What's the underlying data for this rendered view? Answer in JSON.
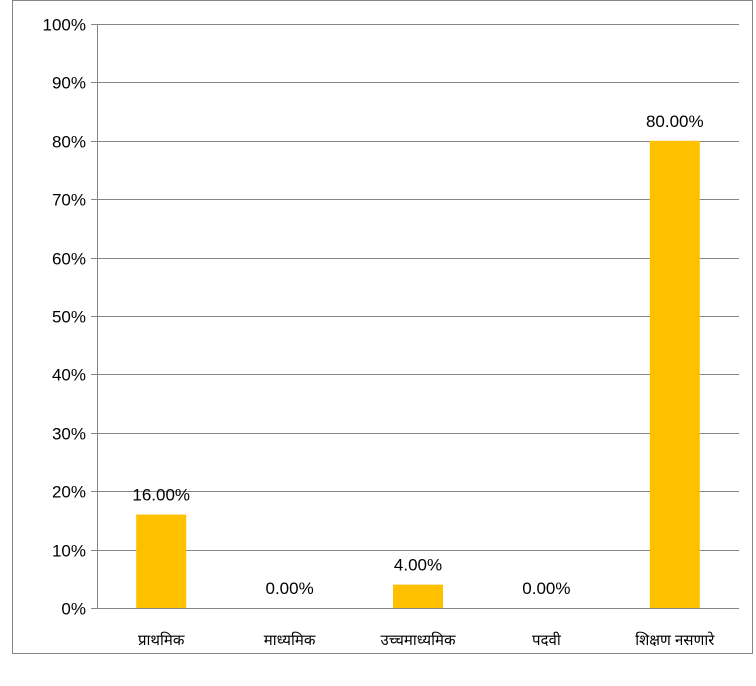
{
  "colors": {
    "bar": "#FFC000",
    "grid": "#868686",
    "border": "#868686",
    "background": "#FFFFFF",
    "text": "#000000"
  },
  "chart_data": {
    "type": "bar",
    "categories": [
      "प्राथमिक",
      "माध्यमिक",
      "उच्चमाध्यमिक",
      "पदवी",
      "शिक्षण नसणारे"
    ],
    "values": [
      16.0,
      0.0,
      4.0,
      0.0,
      80.0
    ],
    "data_labels": [
      "16.00%",
      "0.00%",
      "4.00%",
      "0.00%",
      "80.00%"
    ],
    "y_ticks": [
      "0%",
      "10%",
      "20%",
      "30%",
      "40%",
      "50%",
      "60%",
      "70%",
      "80%",
      "90%",
      "100%"
    ],
    "ylim": [
      0,
      100
    ],
    "grid": true,
    "legend": "none"
  }
}
